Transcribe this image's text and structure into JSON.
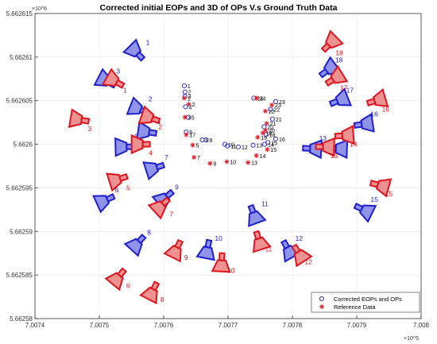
{
  "chart_data": {
    "type": "scatter",
    "title": "Corrected initial EOPs and 3D of OPs V.s Ground Truth Data",
    "xlabel": "",
    "ylabel": "",
    "x_multiplier": "×10^5",
    "y_multiplier": "×10^6",
    "x_ticks": [
      "7.0074",
      "7.0075",
      "7.0076",
      "7.0077",
      "7.0078",
      "7.0079",
      "7.008"
    ],
    "y_ticks": [
      "5.662615",
      "5.66261",
      "5.662605",
      "5.6626",
      "5.662595",
      "5.66259",
      "5.662585",
      "5.66258"
    ],
    "xlim": [
      700740,
      700800
    ],
    "ylim": [
      5662580,
      5662615
    ],
    "grid": true,
    "legend_position": "bottom-right",
    "colors": {
      "corrected": "#1f1fd0",
      "reference": "#e0141e",
      "corrected_fill": "#8f94e8",
      "reference_fill": "#ee9191"
    },
    "series": [
      {
        "name": "Corrected EOPs and OPs",
        "marker": "circle",
        "points": [
          {
            "label": "1",
            "x": 700763.2,
            "y": 5662606.7
          },
          {
            "label": "2",
            "x": 700763.3,
            "y": 5662606.0
          },
          {
            "label": "3",
            "x": 700763.3,
            "y": 5662605.5
          },
          {
            "label": "4",
            "x": 700763.4,
            "y": 5662604.3
          },
          {
            "label": "5",
            "x": 700763.8,
            "y": 5662603.1
          },
          {
            "label": "6",
            "x": 700763.5,
            "y": 5662601.4
          },
          {
            "label": "8",
            "x": 700766.0,
            "y": 5662600.5
          },
          {
            "label": "9",
            "x": 700766.6,
            "y": 5662600.5
          },
          {
            "label": "10",
            "x": 700769.5,
            "y": 5662600.0
          },
          {
            "label": "11",
            "x": 700769.9,
            "y": 5662599.8
          },
          {
            "label": "12",
            "x": 700771.6,
            "y": 5662599.7
          },
          {
            "label": "13",
            "x": 700773.9,
            "y": 5662599.9
          },
          {
            "label": "14",
            "x": 700775.7,
            "y": 5662600.0
          },
          {
            "label": "15",
            "x": 700776.2,
            "y": 5662600.2
          },
          {
            "label": "16",
            "x": 700777.4,
            "y": 5662600.6
          },
          {
            "label": "18",
            "x": 700775.9,
            "y": 5662601.1
          },
          {
            "label": "20",
            "x": 700775.6,
            "y": 5662602.0
          },
          {
            "label": "21",
            "x": 700776.9,
            "y": 5662602.9
          },
          {
            "label": "22",
            "x": 700776.6,
            "y": 5662604.0
          },
          {
            "label": "23",
            "x": 700777.4,
            "y": 5662604.9
          },
          {
            "label": "24",
            "x": 700774.0,
            "y": 5662605.3
          }
        ]
      },
      {
        "name": "Reference Data",
        "marker": "asterisk",
        "points": [
          {
            "label": "1",
            "x": 700763.2,
            "y": 5662605.3
          },
          {
            "label": "2",
            "x": 700763.9,
            "y": 5662604.6
          },
          {
            "label": "3",
            "x": 700763.3,
            "y": 5662603.1
          },
          {
            "label": "5",
            "x": 700764.5,
            "y": 5662599.9
          },
          {
            "label": "7",
            "x": 700764.7,
            "y": 5662598.5
          },
          {
            "label": "9",
            "x": 700767.2,
            "y": 5662597.8
          },
          {
            "label": "10",
            "x": 700769.8,
            "y": 5662598.0
          },
          {
            "label": "13",
            "x": 700773.1,
            "y": 5662597.9
          },
          {
            "label": "14",
            "x": 700774.4,
            "y": 5662598.7
          },
          {
            "label": "15",
            "x": 700776.1,
            "y": 5662599.4
          },
          {
            "label": "18",
            "x": 700775.4,
            "y": 5662601.3
          },
          {
            "label": "19",
            "x": 700774.6,
            "y": 5662600.8
          },
          {
            "label": "20",
            "x": 700775.8,
            "y": 5662601.6
          },
          {
            "label": "21",
            "x": 700776.0,
            "y": 5662602.4
          },
          {
            "label": "22",
            "x": 700775.8,
            "y": 5662603.8
          },
          {
            "label": "23",
            "x": 700776.8,
            "y": 5662604.5
          },
          {
            "label": "24",
            "x": 700774.4,
            "y": 5662605.3
          },
          {
            "label": "17",
            "x": 700763.5,
            "y": 5662601.1
          }
        ]
      }
    ],
    "cameras": {
      "Corrected EOPs and OPs": [
        {
          "label": "1",
          "x": 700755.8,
          "y": 5662610.5
        },
        {
          "label": "3",
          "x": 700751.2,
          "y": 5662607.2
        },
        {
          "label": "2",
          "x": 700756.2,
          "y": 5662604.0
        },
        {
          "label": "4",
          "x": 700757.5,
          "y": 5662601.4
        },
        {
          "label": "5",
          "x": 700754.0,
          "y": 5662599.7
        },
        {
          "label": "7",
          "x": 700758.7,
          "y": 5662597.3
        },
        {
          "label": "6",
          "x": 700751.0,
          "y": 5662593.6
        },
        {
          "label": "9",
          "x": 700760.3,
          "y": 5662593.9
        },
        {
          "label": "8",
          "x": 700756.0,
          "y": 5662588.7
        },
        {
          "label": "10",
          "x": 700766.8,
          "y": 5662588.0
        },
        {
          "label": "11",
          "x": 700774.0,
          "y": 5662592.0
        },
        {
          "label": "12",
          "x": 700779.3,
          "y": 5662588.0
        },
        {
          "label": "13",
          "x": 700783.0,
          "y": 5662599.5
        },
        {
          "label": "14",
          "x": 700787.0,
          "y": 5662599.5
        },
        {
          "label": "15",
          "x": 700791.0,
          "y": 5662592.5
        },
        {
          "label": "16",
          "x": 700791.0,
          "y": 5662602.3
        },
        {
          "label": "17",
          "x": 700787.2,
          "y": 5662605.0
        },
        {
          "label": "18",
          "x": 700785.5,
          "y": 5662608.5
        }
      ],
      "Reference Data": [
        {
          "label": "1",
          "x": 700752.5,
          "y": 5662607.2
        },
        {
          "label": "3",
          "x": 700747.0,
          "y": 5662602.8
        },
        {
          "label": "2",
          "x": 700758.0,
          "y": 5662603.0
        },
        {
          "label": "4",
          "x": 700756.5,
          "y": 5662600.0
        },
        {
          "label": "5",
          "x": 700753.0,
          "y": 5662596.0
        },
        {
          "label": "7",
          "x": 700759.7,
          "y": 5662593.0
        },
        {
          "label": "6",
          "x": 700753.0,
          "y": 5662584.8
        },
        {
          "label": "9",
          "x": 700762.0,
          "y": 5662588.0
        },
        {
          "label": "8",
          "x": 700758.3,
          "y": 5662583.2
        },
        {
          "label": "10",
          "x": 700769.0,
          "y": 5662586.5
        },
        {
          "label": "11",
          "x": 700774.8,
          "y": 5662589.0
        },
        {
          "label": "12",
          "x": 700781.0,
          "y": 5662587.5
        },
        {
          "label": "13",
          "x": 700785.0,
          "y": 5662599.7
        },
        {
          "label": "14",
          "x": 700788.0,
          "y": 5662601.0
        },
        {
          "label": "15",
          "x": 700793.5,
          "y": 5662595.3
        },
        {
          "label": "16",
          "x": 700793.0,
          "y": 5662605.0
        },
        {
          "label": "17",
          "x": 700786.5,
          "y": 5662607.5
        },
        {
          "label": "18",
          "x": 700785.8,
          "y": 5662611.5
        }
      ]
    }
  }
}
